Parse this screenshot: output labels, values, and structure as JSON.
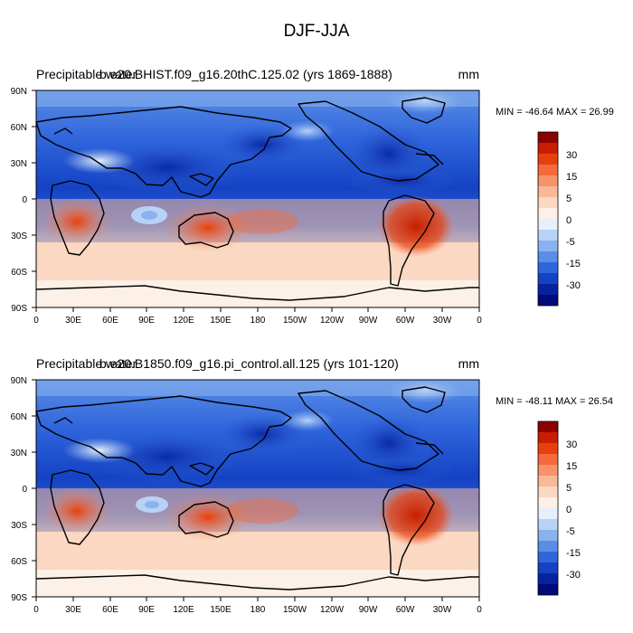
{
  "figure_title": "DJF-JJA",
  "units": "mm",
  "x_tick_labels": [
    "0",
    "30E",
    "60E",
    "90E",
    "120E",
    "150E",
    "180",
    "150W",
    "120W",
    "90W",
    "60W",
    "30W",
    "0"
  ],
  "y_tick_labels": [
    "90N",
    "60N",
    "30N",
    "0",
    "30S",
    "60S",
    "90S"
  ],
  "colorbar": {
    "labels": [
      "30",
      "15",
      "5",
      "0",
      "-5",
      "-15",
      "-30"
    ],
    "colors": [
      "#8c0000",
      "#c81e00",
      "#e8400c",
      "#f46a3c",
      "#f7926a",
      "#f9b896",
      "#fbd8c2",
      "#fdf0e6",
      "#e6f0fc",
      "#b8d2f6",
      "#8ab2ee",
      "#5a8ee6",
      "#3066dc",
      "#1442c4",
      "#08229e",
      "#000a78"
    ]
  },
  "panels": [
    {
      "left_title": "Precipitable water",
      "center_title": "b.e20.BHIST.f09_g16.20thC.125.02 (yrs 1869-1888)",
      "units": "mm",
      "stats": "MIN = -46.64 MAX =  26.99"
    },
    {
      "left_title": "Precipitable water",
      "center_title": "b.e20.B1850.f09_g16.pi_control.all.125 (yrs 101-120)",
      "units": "mm",
      "stats": "MIN = -48.11 MAX =  26.54"
    }
  ]
}
